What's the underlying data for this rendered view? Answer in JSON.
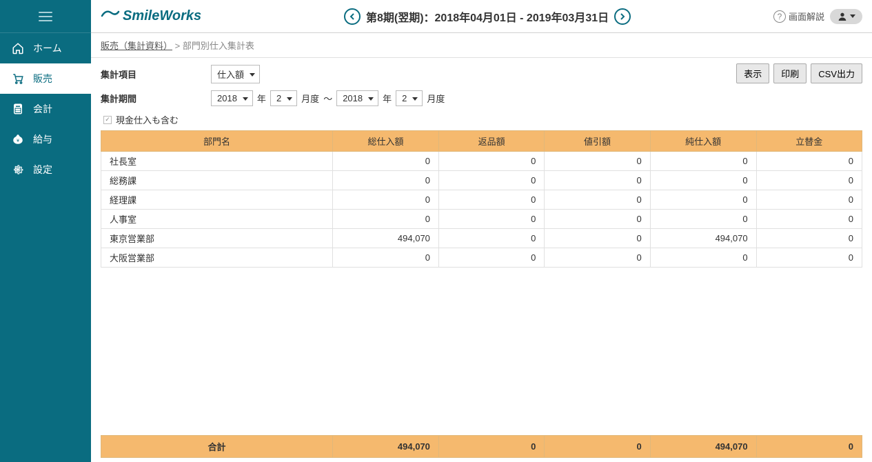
{
  "brand": "SmileWorks",
  "sidebar": {
    "items": [
      {
        "label": "ホーム"
      },
      {
        "label": "販売"
      },
      {
        "label": "会計"
      },
      {
        "label": "給与"
      },
      {
        "label": "設定"
      }
    ]
  },
  "header": {
    "period_text": "第8期(翌期)：2018年04月01日 - 2019年03月31日",
    "help_label": "画面解説"
  },
  "breadcrumb": {
    "link": "販売（集計資料）",
    "sep": ">",
    "current": "部門別仕入集計表"
  },
  "controls": {
    "item_label": "集計項目",
    "item_value": "仕入額",
    "period_label": "集計期間",
    "from_year": "2018",
    "from_month": "2",
    "to_year": "2018",
    "to_month": "2",
    "year_suffix": "年",
    "month_suffix": "月度",
    "range_sep": "～",
    "checkbox_label": "現金仕入も含む",
    "btn_show": "表示",
    "btn_print": "印刷",
    "btn_csv": "CSV出力"
  },
  "table": {
    "headers": [
      "部門名",
      "総仕入額",
      "返品額",
      "値引額",
      "純仕入額",
      "立替金"
    ],
    "rows": [
      {
        "name": "社長室",
        "v1": "0",
        "v2": "0",
        "v3": "0",
        "v4": "0",
        "v5": "0"
      },
      {
        "name": "総務課",
        "v1": "0",
        "v2": "0",
        "v3": "0",
        "v4": "0",
        "v5": "0"
      },
      {
        "name": "経理課",
        "v1": "0",
        "v2": "0",
        "v3": "0",
        "v4": "0",
        "v5": "0"
      },
      {
        "name": "人事室",
        "v1": "0",
        "v2": "0",
        "v3": "0",
        "v4": "0",
        "v5": "0"
      },
      {
        "name": "東京営業部",
        "v1": "494,070",
        "v2": "0",
        "v3": "0",
        "v4": "494,070",
        "v5": "0"
      },
      {
        "name": "大阪営業部",
        "v1": "0",
        "v2": "0",
        "v3": "0",
        "v4": "0",
        "v5": "0"
      }
    ],
    "total": {
      "label": "合計",
      "v1": "494,070",
      "v2": "0",
      "v3": "0",
      "v4": "494,070",
      "v5": "0"
    }
  },
  "colors": {
    "sidebar_bg": "#0a6c80",
    "accent_orange": "#f5b96e",
    "border_gray": "#e0e0e0"
  }
}
